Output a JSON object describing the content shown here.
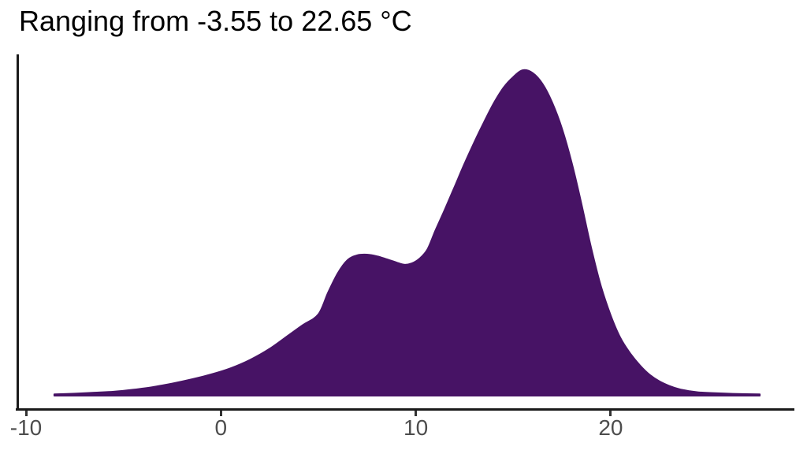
{
  "chart": {
    "title": "Ranging from -3.55 to 22.65 °C"
  },
  "colors": {
    "fill": "#471365",
    "axis_line": "#1a1a1a",
    "tick_mark": "#333333",
    "tick_label": "#4d4d4d",
    "title_text": "#000000",
    "background": "#ffffff"
  },
  "chart_data": {
    "type": "area",
    "subtype": "density",
    "title": "Ranging from -3.55 to 22.65 °C",
    "xlabel": "",
    "ylabel": "",
    "unit": "°C",
    "range_min": -3.55,
    "range_max": 22.65,
    "x_ticks": [
      -10,
      0,
      10,
      20
    ],
    "x_tick_labels": [
      "-10",
      "0",
      "10",
      "20"
    ],
    "xlim": [
      -10.5,
      29.4
    ],
    "ylim_relative": [
      0,
      1.05
    ],
    "grid": false,
    "legend": false,
    "curve_note": "density in relative units (peak = 1.0) at temperature x in °C; bimodal: shoulder near 7, main peak near 15.5",
    "curve": [
      [
        -8.55,
        0.002
      ],
      [
        -7.5,
        0.004
      ],
      [
        -6.5,
        0.007
      ],
      [
        -5.5,
        0.01
      ],
      [
        -4.5,
        0.016
      ],
      [
        -3.5,
        0.024
      ],
      [
        -2.5,
        0.035
      ],
      [
        -1.5,
        0.048
      ],
      [
        -0.5,
        0.063
      ],
      [
        0.5,
        0.082
      ],
      [
        1.5,
        0.108
      ],
      [
        2.5,
        0.142
      ],
      [
        3.5,
        0.185
      ],
      [
        4.2,
        0.215
      ],
      [
        5.0,
        0.248
      ],
      [
        5.5,
        0.315
      ],
      [
        6.0,
        0.375
      ],
      [
        6.5,
        0.415
      ],
      [
        7.0,
        0.43
      ],
      [
        7.5,
        0.432
      ],
      [
        8.0,
        0.427
      ],
      [
        8.5,
        0.418
      ],
      [
        9.0,
        0.408
      ],
      [
        9.4,
        0.401
      ],
      [
        9.8,
        0.405
      ],
      [
        10.2,
        0.42
      ],
      [
        10.6,
        0.448
      ],
      [
        11.0,
        0.505
      ],
      [
        11.5,
        0.572
      ],
      [
        12.0,
        0.642
      ],
      [
        12.5,
        0.712
      ],
      [
        13.0,
        0.778
      ],
      [
        13.5,
        0.84
      ],
      [
        14.0,
        0.898
      ],
      [
        14.5,
        0.946
      ],
      [
        15.0,
        0.979
      ],
      [
        15.5,
        1.0
      ],
      [
        16.0,
        0.991
      ],
      [
        16.5,
        0.958
      ],
      [
        17.0,
        0.9
      ],
      [
        17.5,
        0.82
      ],
      [
        18.0,
        0.715
      ],
      [
        18.5,
        0.588
      ],
      [
        19.0,
        0.452
      ],
      [
        19.5,
        0.335
      ],
      [
        20.0,
        0.245
      ],
      [
        20.5,
        0.175
      ],
      [
        21.0,
        0.128
      ],
      [
        21.5,
        0.091
      ],
      [
        22.0,
        0.062
      ],
      [
        22.5,
        0.042
      ],
      [
        23.0,
        0.028
      ],
      [
        23.5,
        0.018
      ],
      [
        24.0,
        0.012
      ],
      [
        24.5,
        0.008
      ],
      [
        25.5,
        0.005
      ],
      [
        26.5,
        0.003
      ],
      [
        27.65,
        0.002
      ]
    ]
  }
}
